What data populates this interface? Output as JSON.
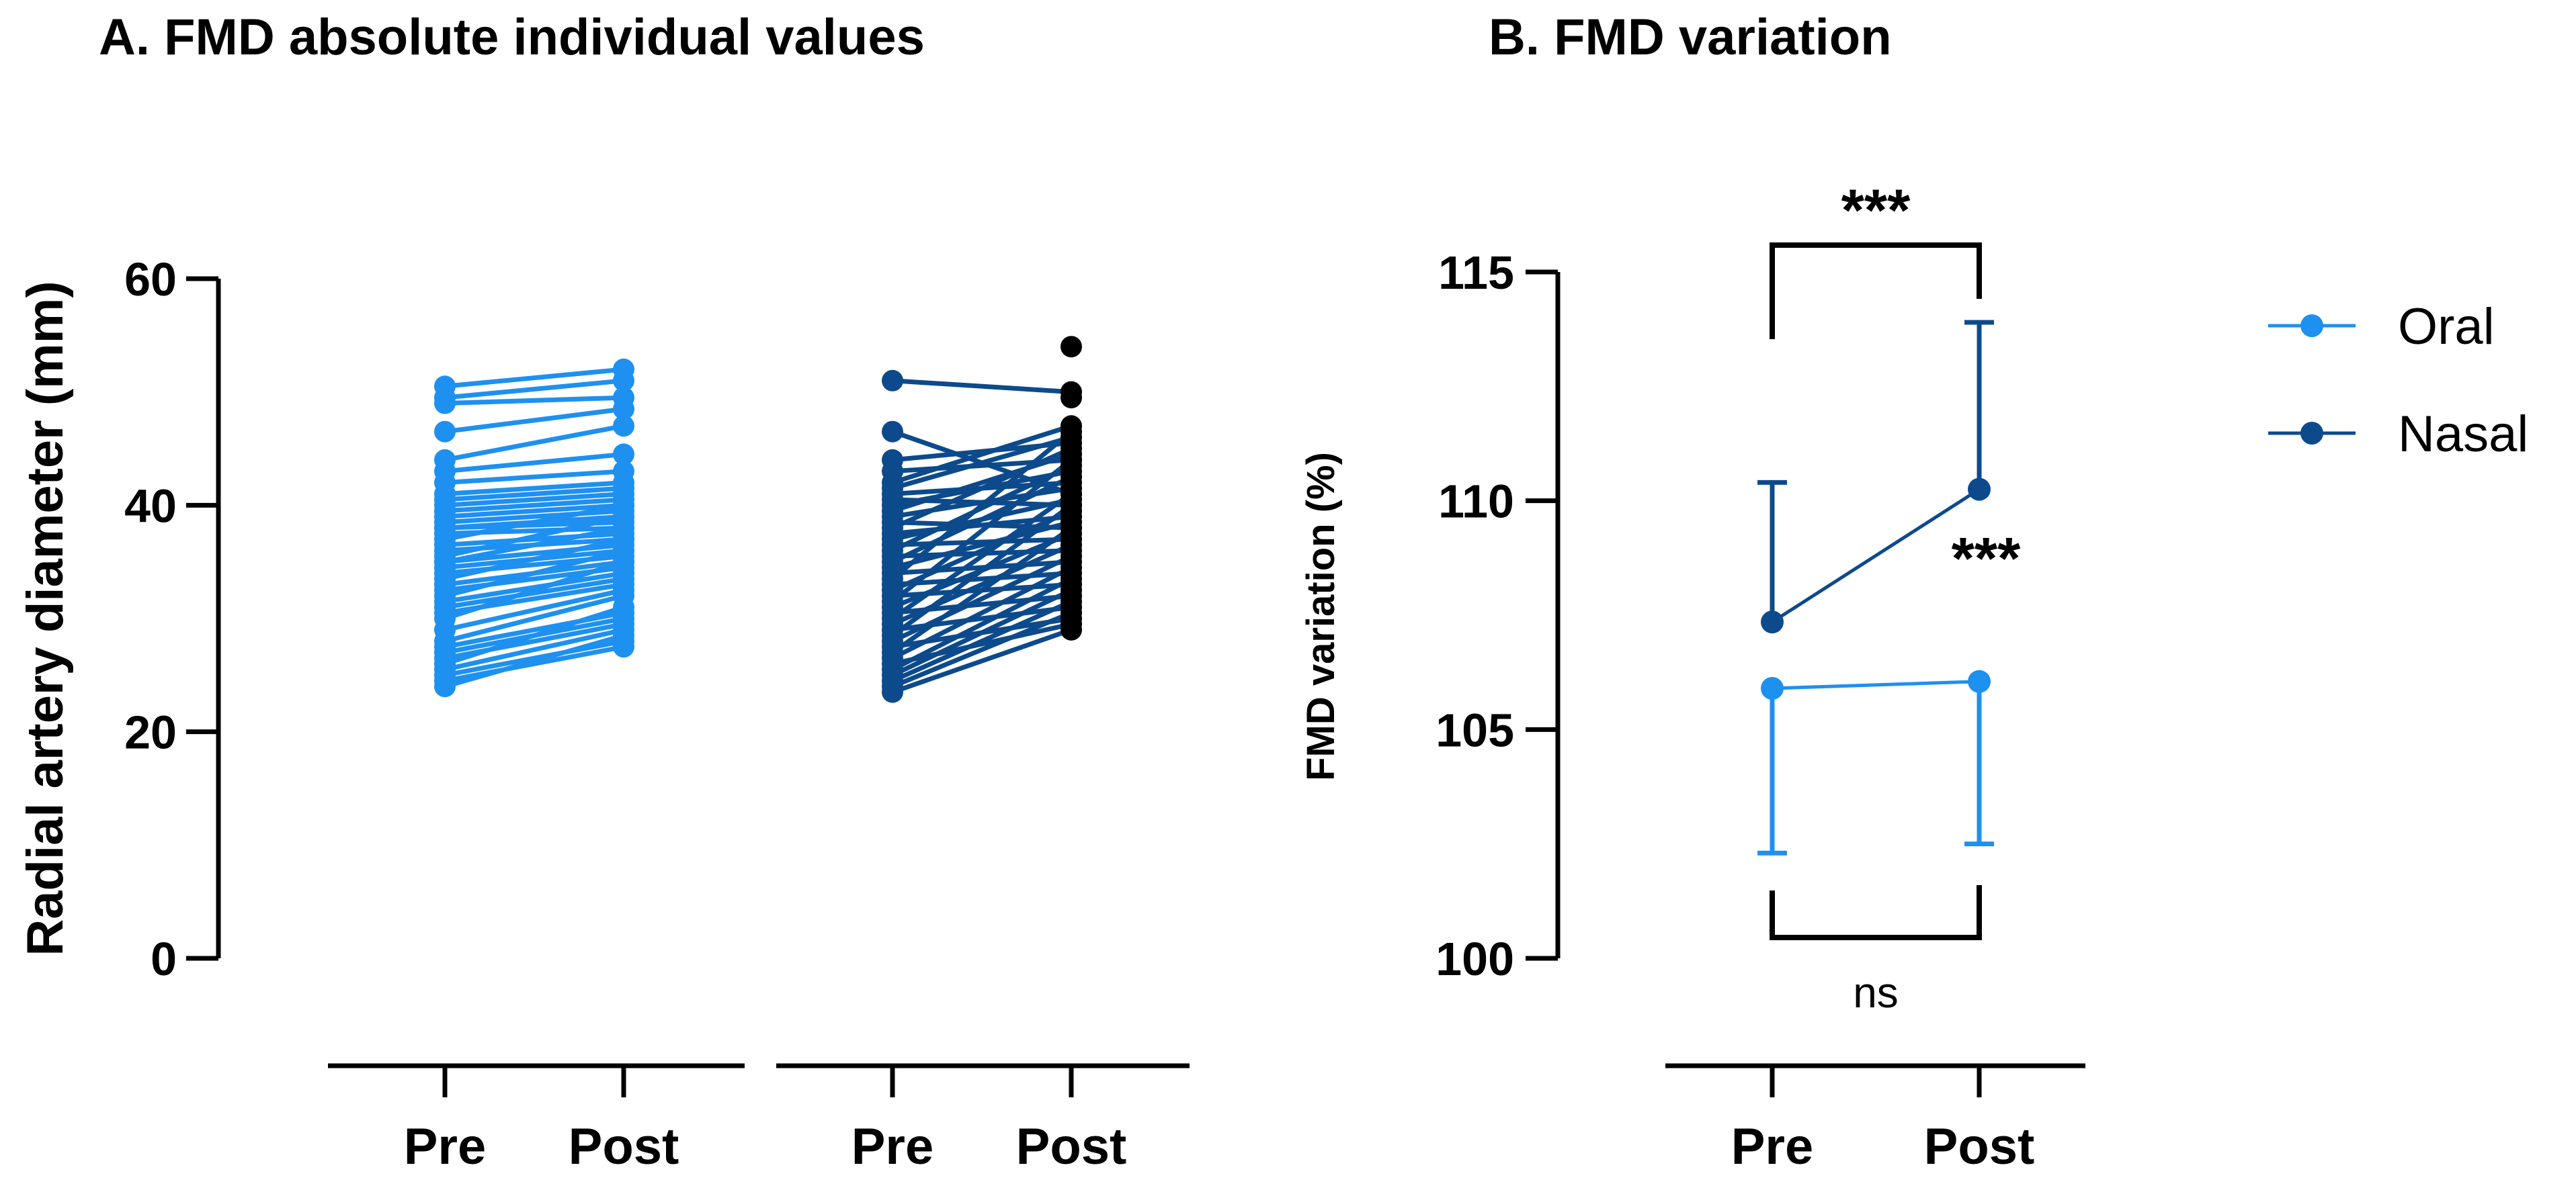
{
  "chart_data": [
    {
      "type": "line",
      "panel": "A",
      "title": "A. FMD absolute individual values",
      "ylabel": "Radial artery diameter (mm)",
      "ylim": [
        0,
        60
      ],
      "yticks": [
        "0",
        "20",
        "40",
        "60"
      ],
      "groups": [
        {
          "name": "Oral",
          "color": "#1e90f0",
          "categories": [
            "Pre",
            "Post"
          ],
          "pre": [
            50.5,
            49.5,
            49,
            46.5,
            44,
            43,
            42,
            41,
            40.5,
            40,
            39.5,
            39,
            38.5,
            38,
            38,
            37.5,
            37,
            36.5,
            36,
            35.5,
            35,
            35,
            34.5,
            34,
            33.5,
            33,
            32.5,
            32,
            31.5,
            31,
            30.5,
            30,
            29,
            28,
            27.5,
            27,
            26.5,
            26,
            25.5,
            25,
            24.5,
            24
          ],
          "post": [
            52,
            51,
            49.5,
            48.5,
            47,
            44.5,
            43,
            42,
            41.5,
            41,
            40.5,
            40,
            39.5,
            39,
            38.5,
            38,
            40,
            37.5,
            37,
            39,
            36.5,
            38,
            36,
            35.5,
            37,
            35,
            34.5,
            36,
            34,
            33.5,
            33,
            35,
            32.5,
            32,
            30.5,
            30,
            29.5,
            31,
            29,
            28,
            27.5,
            28.5
          ]
        },
        {
          "name": "Nasal",
          "color": "#0d4a8c",
          "post_marker_color": "#000000",
          "categories": [
            "Pre",
            "Post"
          ],
          "pre": [
            51,
            46.5,
            44,
            43,
            42,
            41.5,
            41,
            40.5,
            40,
            39.5,
            39,
            38.5,
            38,
            37.5,
            37,
            36.5,
            36,
            35.5,
            35,
            34.5,
            34,
            33.5,
            33,
            32.5,
            32,
            31.5,
            31,
            30.5,
            30,
            29.5,
            29,
            28.5,
            28,
            27.5,
            27,
            26.5,
            26,
            25.5,
            25,
            24.5,
            24,
            23.5
          ],
          "post": [
            50,
            41,
            45.5,
            44,
            47,
            46,
            42,
            40,
            43,
            44.5,
            41.5,
            38,
            45,
            39,
            40.5,
            37,
            43.5,
            36,
            42.5,
            38.5,
            35,
            46.5,
            34,
            39.5,
            33,
            44,
            37.5,
            32,
            41,
            36.5,
            31,
            40,
            35.5,
            30,
            38,
            34.5,
            29.5,
            33.5,
            32.5,
            31.5,
            30.5,
            29
          ]
        }
      ],
      "annotations": [
        {
          "marker": "pre",
          "extra_values": [
            54,
            49.5
          ]
        }
      ],
      "xlabel": ""
    },
    {
      "type": "line",
      "panel": "B",
      "title": "B. FMD variation",
      "ylabel": "FMD variation (%)",
      "ylim": [
        100,
        115
      ],
      "yticks": [
        "100",
        "105",
        "110",
        "115"
      ],
      "categories": [
        "Pre",
        "Post"
      ],
      "series": [
        {
          "name": "Oral",
          "color": "#1e90f0",
          "values": [
            105.9,
            106.05
          ],
          "error_lower": [
            102.3,
            102.5
          ],
          "error_upper": [
            105.9,
            106.05
          ]
        },
        {
          "name": "Nasal",
          "color": "#0d4a8c",
          "values": [
            107.35,
            110.25
          ],
          "error_lower": [
            107.35,
            110.25
          ],
          "error_upper": [
            110.4,
            113.9
          ]
        }
      ],
      "legend": {
        "entries": [
          "Oral",
          "Nasal"
        ],
        "position": "right"
      },
      "significance": {
        "nasal_pre_post": "***",
        "oral_vs_nasal_post": "***",
        "oral_pre_post": "ns"
      }
    }
  ]
}
